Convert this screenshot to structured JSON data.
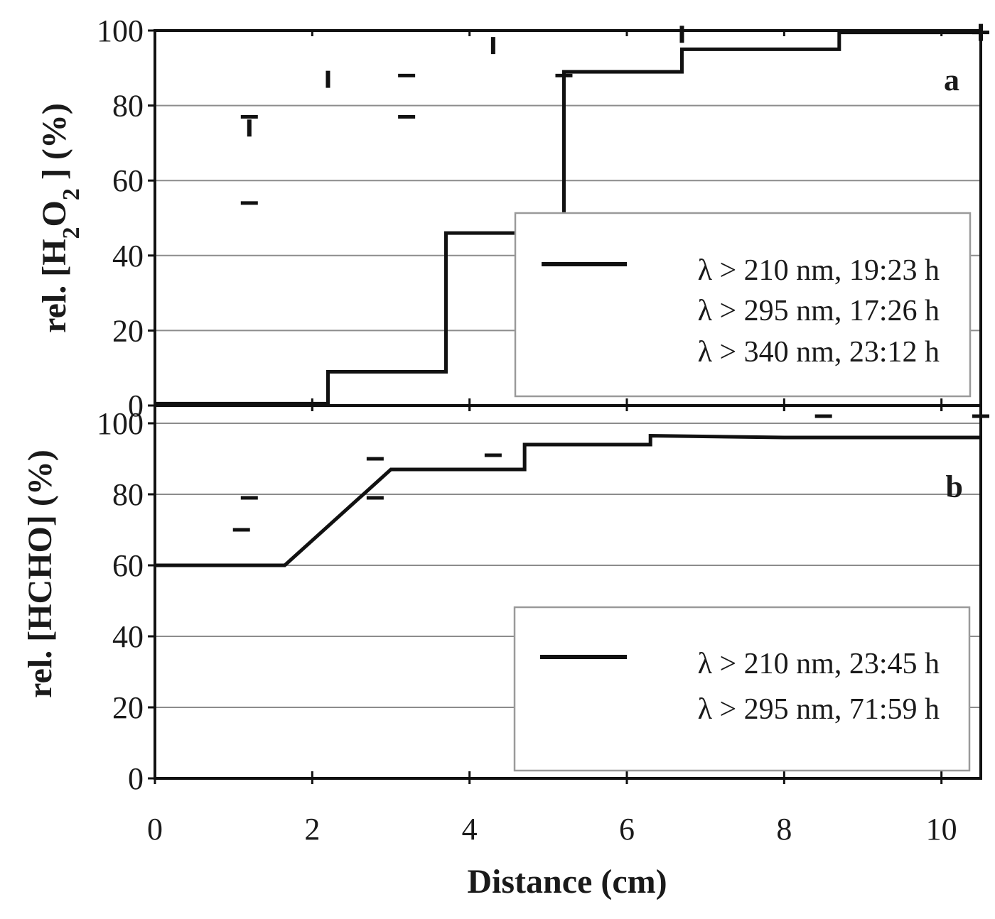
{
  "chart_data": [
    {
      "panel": "a",
      "type": "line",
      "step": true,
      "ylabel_parts": [
        "rel. [H",
        "2",
        "O",
        "2",
        " ] (%)"
      ],
      "ylim": [
        0,
        100
      ],
      "yticks": [
        0,
        20,
        40,
        60,
        80,
        100
      ],
      "xlim": [
        0,
        10.5
      ],
      "grid": true,
      "legend_position": "right",
      "series": [
        {
          "name": "λ > 210 nm, 19:23 h",
          "style": "solid",
          "x": [
            0,
            2.2,
            2.2,
            3.7,
            3.7,
            5.2,
            5.2,
            6.7,
            6.7,
            8.7,
            8.7,
            10.5
          ],
          "y": [
            0.5,
            0.5,
            9,
            9,
            46,
            46,
            89,
            89,
            95,
            95,
            99.5,
            99.5
          ]
        },
        {
          "name": "λ > 295 nm, 17:26 h",
          "style": "dashed",
          "x": [
            1.2,
            1.2,
            3.2,
            3.2,
            5.2,
            10.5
          ],
          "y": [
            54,
            77,
            77,
            88,
            88,
            99.5
          ]
        },
        {
          "name": "λ > 340 nm, 23:12 h",
          "style": "dotted",
          "x": [
            1.2,
            2.2,
            4.3,
            6.7,
            10.5
          ],
          "y": [
            74,
            87,
            96,
            99,
            99.5
          ]
        }
      ]
    },
    {
      "panel": "b",
      "type": "line",
      "step": true,
      "ylabel_parts": [
        "rel. [HCHO] (%)"
      ],
      "ylim": [
        0,
        105
      ],
      "yticks": [
        0,
        20,
        40,
        60,
        80,
        100
      ],
      "xlabel": "Distance (cm)",
      "xlim": [
        0,
        10.5
      ],
      "xticks": [
        0,
        2,
        4,
        6,
        8,
        10
      ],
      "grid": true,
      "legend_position": "right",
      "series": [
        {
          "name": "λ > 210 nm, 23:45 h",
          "style": "solid",
          "x": [
            0,
            1.65,
            3.0,
            4.7,
            4.7,
            6.3,
            6.3,
            8.0,
            10.5
          ],
          "y": [
            60,
            60,
            87,
            87,
            94,
            94,
            96.5,
            96,
            96
          ]
        },
        {
          "name": "λ > 295 nm, 71:59 h",
          "style": "dashed",
          "x": [
            1.1,
            1.2,
            2.8,
            2.8,
            4.3,
            8.5,
            10.5
          ],
          "y": [
            70,
            79,
            79,
            90,
            91,
            102,
            102
          ]
        }
      ]
    }
  ]
}
